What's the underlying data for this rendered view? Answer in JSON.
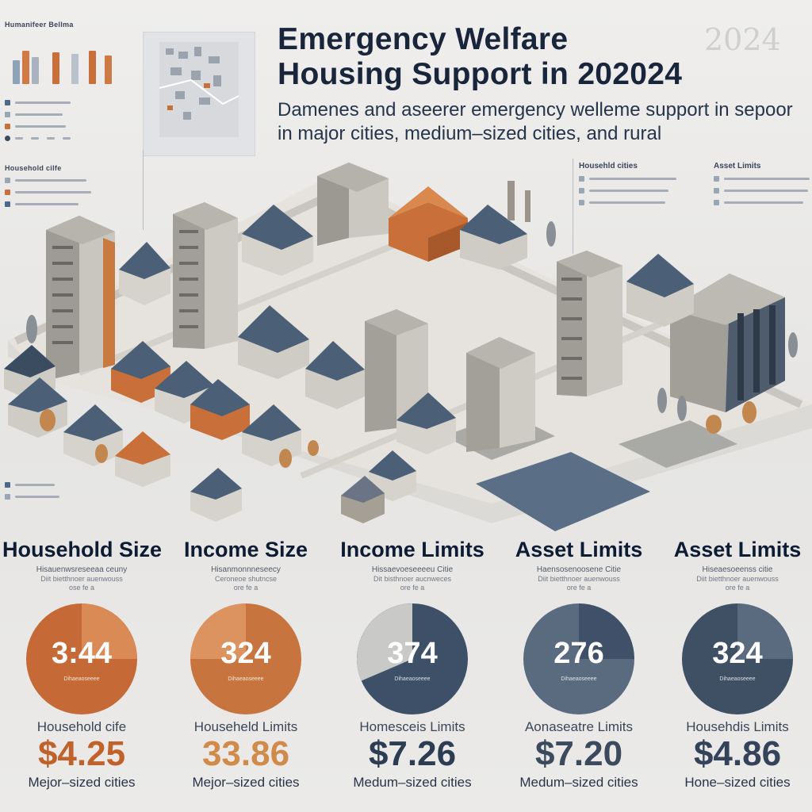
{
  "header": {
    "title_line1": "Emergency Welfare",
    "title_line2": "Housing Support in 202024",
    "ghost_year": "2024",
    "subtitle_line1": "Damenes and aseerer emergency welleme support in sepoor",
    "subtitle_line2": "in major cities, medium–sized cities,  and rural"
  },
  "legends": {
    "top_left_title": "Humanifeer Bellma",
    "household_title": "Household cilfe",
    "right_title_1": "Househld cities",
    "right_title_2": "Asset Limits"
  },
  "stats": [
    {
      "heading": "Household Size",
      "sub1": "Hisauenwsreseeaa ceuny",
      "sub2": "Diit bietthnoer auenwouss",
      "sub3": "ose fe a",
      "number": "3:44",
      "circle_caption": "Dihaeaoseeee",
      "label": "Household cife",
      "value": "$4.25",
      "footer": "Mejor–sized cities",
      "value_color": "#c0622a"
    },
    {
      "heading": "Income Size",
      "sub1": "Hisanmonnneseecy",
      "sub2": "Ceroneoe shutncse",
      "sub3": "ore fe a",
      "number": "324",
      "circle_caption": "Dihaeaoseeee",
      "label": "Househeld Limits",
      "value": "33.86",
      "footer": "Mejor–sized cities",
      "value_color": "#d08a4a"
    },
    {
      "heading": "Income Limits",
      "sub1": "Hissaevoeseeeeu Citie",
      "sub2": "Dit bisthnoer aucnweces",
      "sub3": "ore fe a",
      "number": "374",
      "circle_caption": "Dihaeaoseeee",
      "label": "Homesceis Limits",
      "value": "$7.26",
      "footer": "Medum–sized cities",
      "value_color": "#2c3c52"
    },
    {
      "heading": "Asset Limits",
      "sub1": "Haensosenoosene Citie",
      "sub2": "Diit bietthnoer auenwouss",
      "sub3": "ore fe a",
      "number": "276",
      "circle_caption": "Dihaeaoseeee",
      "label": "Aonaseatre Limits",
      "value": "$7.20",
      "footer": "Medum–sized cities",
      "value_color": "#3c4a5e"
    },
    {
      "heading": "Asset Limits",
      "sub1": "Hiseaesoeenss citie",
      "sub2": "Diit bietthnoer auenwouss",
      "sub3": "ore fe a",
      "number": "324",
      "circle_caption": "Dihaeaoseeee",
      "label": "Househdis Limits",
      "value": "$4.86",
      "footer": "Hone–sized cities",
      "value_color": "#34435a"
    }
  ],
  "colors": {
    "orange": "#c9703a",
    "light_orange": "#dd9560",
    "slate": "#4b5f77",
    "dark_slate": "#3b4b60",
    "gray": "#c8c8c8"
  }
}
